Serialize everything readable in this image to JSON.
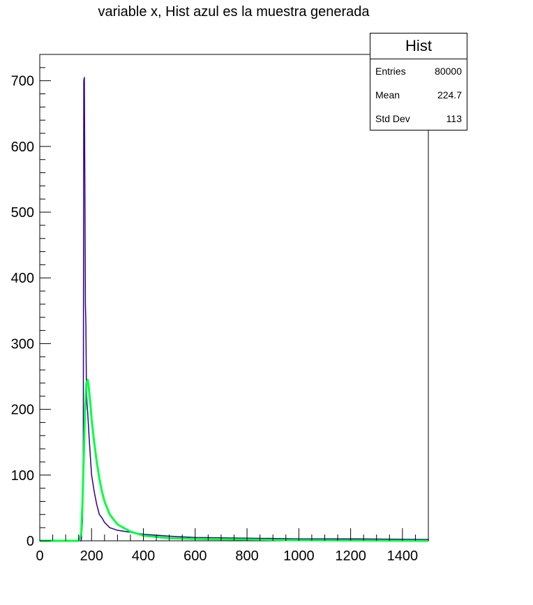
{
  "chart_data": {
    "type": "bar",
    "title": "variable x, Hist azul es la muestra generada",
    "xlabel": "",
    "ylabel": "",
    "xlim": [
      0,
      1500
    ],
    "ylim": [
      0,
      740
    ],
    "x_ticks": [
      "0",
      "200",
      "400",
      "600",
      "800",
      "1000",
      "1200",
      "1400"
    ],
    "y_ticks": [
      "0",
      "100",
      "200",
      "300",
      "400",
      "500",
      "600",
      "700"
    ],
    "grid": false,
    "legend": "top-right",
    "series": [
      {
        "color": "#2a0090",
        "values": [
          [
            160,
            0
          ],
          [
            165,
            30
          ],
          [
            168,
            150
          ],
          [
            170,
            700
          ],
          [
            172,
            705
          ],
          [
            174,
            555
          ],
          [
            176,
            360
          ],
          [
            178,
            330
          ],
          [
            180,
            240
          ],
          [
            182,
            210
          ],
          [
            185,
            195
          ],
          [
            190,
            160
          ],
          [
            195,
            130
          ],
          [
            200,
            100
          ],
          [
            210,
            75
          ],
          [
            220,
            55
          ],
          [
            230,
            40
          ],
          [
            240,
            35
          ],
          [
            250,
            28
          ],
          [
            270,
            20
          ],
          [
            300,
            16
          ],
          [
            350,
            13
          ],
          [
            400,
            10
          ],
          [
            500,
            7
          ],
          [
            600,
            5
          ],
          [
            800,
            4
          ],
          [
            1000,
            3
          ],
          [
            1200,
            3
          ],
          [
            1500,
            2
          ]
        ]
      },
      {
        "color": "#00ff40",
        "values": [
          [
            150,
            0
          ],
          [
            160,
            10
          ],
          [
            165,
            60
          ],
          [
            170,
            130
          ],
          [
            175,
            200
          ],
          [
            180,
            240
          ],
          [
            185,
            245
          ],
          [
            190,
            230
          ],
          [
            195,
            210
          ],
          [
            200,
            185
          ],
          [
            210,
            150
          ],
          [
            220,
            120
          ],
          [
            230,
            95
          ],
          [
            240,
            75
          ],
          [
            250,
            60
          ],
          [
            270,
            40
          ],
          [
            300,
            25
          ],
          [
            350,
            14
          ],
          [
            400,
            8
          ],
          [
            500,
            4
          ],
          [
            600,
            3
          ],
          [
            800,
            2
          ],
          [
            1000,
            1
          ],
          [
            1500,
            0
          ]
        ]
      }
    ],
    "stats": {
      "title": "Hist",
      "rows": [
        {
          "label": "Entries",
          "value": "80000"
        },
        {
          "label": "Mean",
          "value": "224.7"
        },
        {
          "label": "Std Dev",
          "value": "113"
        }
      ]
    }
  }
}
